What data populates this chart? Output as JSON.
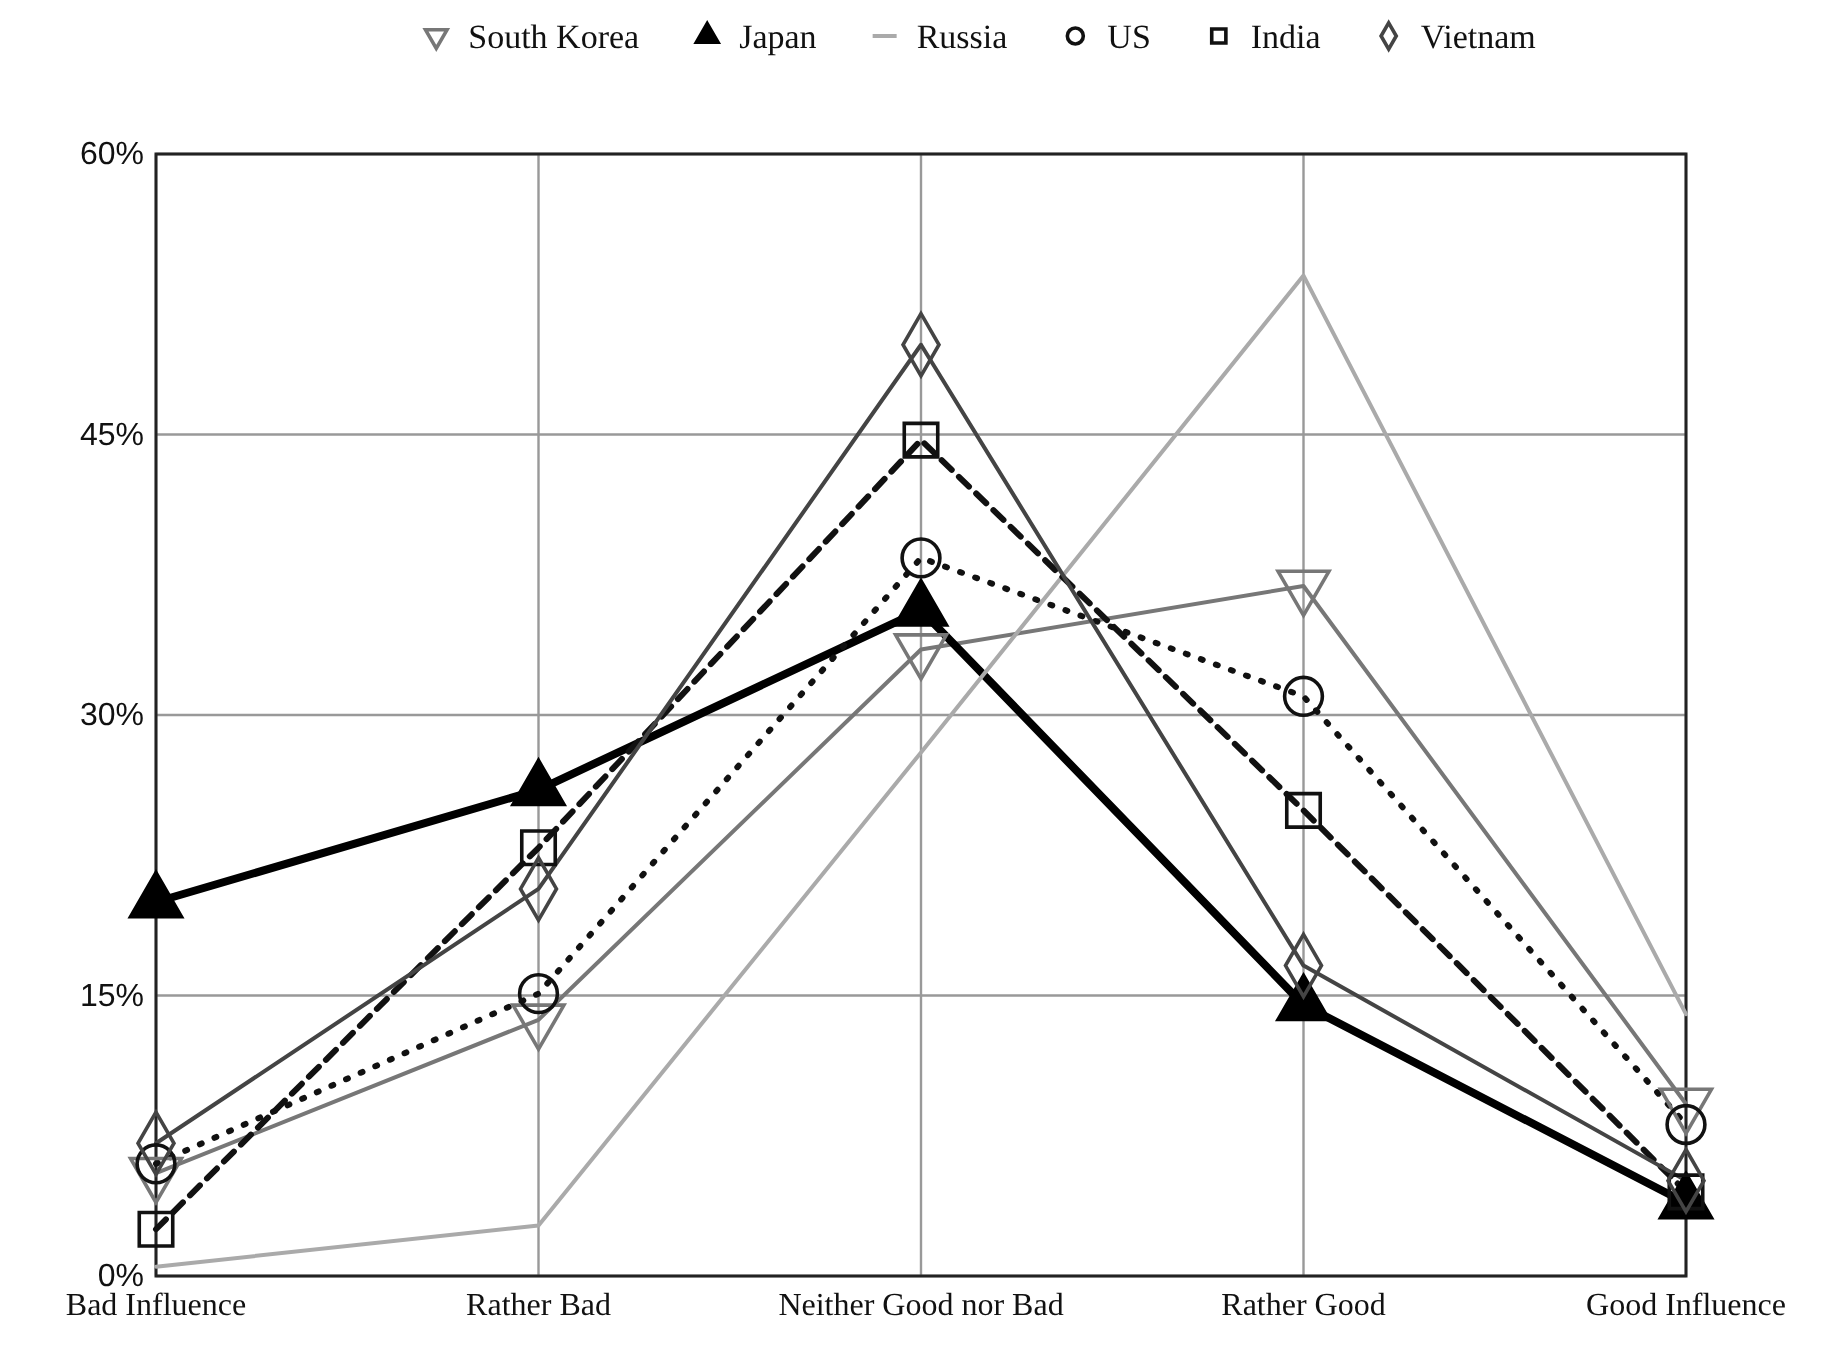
{
  "chart_data": {
    "type": "line",
    "categories": [
      "Bad Influence",
      "Rather Bad",
      "Neither Good nor Bad",
      "Rather Good",
      "Good Influence"
    ],
    "series": [
      {
        "name": "South Korea",
        "color": "#777777",
        "marker": "triangle-down",
        "line_style": "solid",
        "values": [
          5.5,
          13.7,
          33.5,
          36.9,
          9.2
        ]
      },
      {
        "name": "Japan",
        "color": "#000000",
        "marker": "triangle",
        "line_style": "solid",
        "values": [
          20,
          26,
          35.6,
          14.5,
          3.9
        ]
      },
      {
        "name": "Russia",
        "color": "#aaaaaa",
        "marker": "none",
        "line_style": "solid",
        "values": [
          0.5,
          2.7,
          28,
          53.5,
          14
        ]
      },
      {
        "name": "US",
        "color": "#111111",
        "marker": "circle",
        "line_style": "dotted",
        "values": [
          6,
          15.1,
          38.4,
          31,
          8.1
        ]
      },
      {
        "name": "India",
        "color": "#111111",
        "marker": "square",
        "line_style": "dashed",
        "values": [
          2.5,
          22.9,
          44.7,
          24.9,
          4.5
        ]
      },
      {
        "name": "Vietnam",
        "color": "#444444",
        "marker": "diamond",
        "line_style": "solid",
        "values": [
          7.1,
          20.7,
          49.8,
          16.6,
          5.1
        ]
      }
    ],
    "ylim": [
      0,
      60
    ],
    "yticks": [
      {
        "value": 0,
        "label": "0%"
      },
      {
        "value": 15,
        "label": "15%"
      },
      {
        "value": 30,
        "label": "30%"
      },
      {
        "value": 45,
        "label": "45%"
      },
      {
        "value": 60,
        "label": "60%"
      }
    ],
    "grid": true,
    "legend": "top"
  }
}
